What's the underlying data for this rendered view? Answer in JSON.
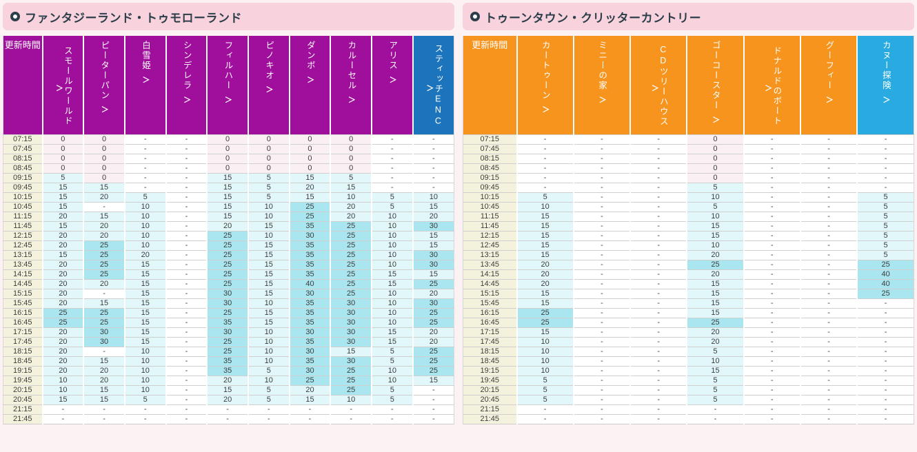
{
  "chevron": "＞",
  "colors": {
    "page_bg": "#FCF2F4",
    "title_bar_bg": "#F8D2DC",
    "title_text": "#2B3E4A",
    "left_header_bg": "#A00E9C",
    "left_highlight_bg": "#1C74BC",
    "right_header_bg": "#F7941D",
    "right_highlight_bg": "#29ABE2",
    "time_col_bg": "#F4F2DC",
    "cell_zero_bg": "#FAEFF2",
    "cell_low_bg": "#E2F7FA",
    "cell_high_bg": "#A9E6EF",
    "cell_none_bg": "#FFFFFF"
  },
  "panels": [
    {
      "title": "ファンタジーランド・トゥモローランド",
      "time_header": "更新時間",
      "header_bg": "#A00E9C",
      "highlight_bg": "#1C74BC",
      "columns": [
        {
          "label": "スモールワールド",
          "highlight": false
        },
        {
          "label": "ピーターパン",
          "highlight": false
        },
        {
          "label": "白雪姫",
          "highlight": false
        },
        {
          "label": "シンデレラ",
          "highlight": false
        },
        {
          "label": "フィルハー",
          "highlight": false
        },
        {
          "label": "ピノキオ",
          "highlight": false
        },
        {
          "label": "ダンボ",
          "highlight": false
        },
        {
          "label": "カルーセル",
          "highlight": false
        },
        {
          "label": "アリス",
          "highlight": false
        },
        {
          "label": "スティッチENC",
          "highlight": true
        }
      ],
      "rows": [
        {
          "time": "07:15",
          "values": [
            "0",
            "0",
            "-",
            "-",
            "0",
            "0",
            "0",
            "0",
            "-",
            "-"
          ]
        },
        {
          "time": "07:45",
          "values": [
            "0",
            "0",
            "-",
            "-",
            "0",
            "0",
            "0",
            "0",
            "-",
            "-"
          ]
        },
        {
          "time": "08:15",
          "values": [
            "0",
            "0",
            "-",
            "-",
            "0",
            "0",
            "0",
            "0",
            "-",
            "-"
          ]
        },
        {
          "time": "08:45",
          "values": [
            "0",
            "0",
            "-",
            "-",
            "0",
            "0",
            "0",
            "0",
            "-",
            "-"
          ]
        },
        {
          "time": "09:15",
          "values": [
            "5",
            "0",
            "-",
            "-",
            "15",
            "5",
            "15",
            "5",
            "-",
            "-"
          ]
        },
        {
          "time": "09:45",
          "values": [
            "15",
            "15",
            "-",
            "-",
            "15",
            "5",
            "20",
            "15",
            "-",
            "-"
          ]
        },
        {
          "time": "10:15",
          "values": [
            "15",
            "20",
            "5",
            "-",
            "15",
            "5",
            "15",
            "10",
            "5",
            "10"
          ]
        },
        {
          "time": "10:45",
          "values": [
            "15",
            "-",
            "10",
            "-",
            "15",
            "10",
            "25",
            "20",
            "5",
            "15"
          ]
        },
        {
          "time": "11:15",
          "values": [
            "20",
            "15",
            "10",
            "-",
            "15",
            "10",
            "25",
            "20",
            "10",
            "20"
          ]
        },
        {
          "time": "11:45",
          "values": [
            "15",
            "20",
            "10",
            "-",
            "20",
            "15",
            "35",
            "25",
            "10",
            "30"
          ]
        },
        {
          "time": "12:15",
          "values": [
            "20",
            "20",
            "10",
            "-",
            "25",
            "10",
            "30",
            "25",
            "10",
            "15"
          ]
        },
        {
          "time": "12:45",
          "values": [
            "20",
            "25",
            "10",
            "-",
            "25",
            "15",
            "35",
            "25",
            "10",
            "15"
          ]
        },
        {
          "time": "13:15",
          "values": [
            "15",
            "25",
            "20",
            "-",
            "25",
            "15",
            "35",
            "25",
            "10",
            "30"
          ]
        },
        {
          "time": "13:45",
          "values": [
            "20",
            "25",
            "15",
            "-",
            "25",
            "15",
            "35",
            "25",
            "10",
            "30"
          ]
        },
        {
          "time": "14:15",
          "values": [
            "20",
            "25",
            "15",
            "-",
            "25",
            "15",
            "35",
            "25",
            "15",
            "15"
          ]
        },
        {
          "time": "14:45",
          "values": [
            "20",
            "20",
            "15",
            "-",
            "25",
            "15",
            "40",
            "25",
            "15",
            "25"
          ]
        },
        {
          "time": "15:15",
          "values": [
            "20",
            "-",
            "15",
            "-",
            "30",
            "15",
            "30",
            "25",
            "10",
            "20"
          ]
        },
        {
          "time": "15:45",
          "values": [
            "20",
            "15",
            "15",
            "-",
            "30",
            "10",
            "35",
            "30",
            "10",
            "30"
          ]
        },
        {
          "time": "16:15",
          "values": [
            "25",
            "25",
            "15",
            "-",
            "25",
            "15",
            "35",
            "30",
            "10",
            "25"
          ]
        },
        {
          "time": "16:45",
          "values": [
            "25",
            "25",
            "15",
            "-",
            "35",
            "15",
            "35",
            "30",
            "10",
            "25"
          ]
        },
        {
          "time": "17:15",
          "values": [
            "20",
            "30",
            "15",
            "-",
            "30",
            "10",
            "30",
            "30",
            "15",
            "20"
          ]
        },
        {
          "time": "17:45",
          "values": [
            "20",
            "30",
            "15",
            "-",
            "25",
            "10",
            "35",
            "30",
            "15",
            "20"
          ]
        },
        {
          "time": "18:15",
          "values": [
            "20",
            "-",
            "10",
            "-",
            "25",
            "10",
            "30",
            "15",
            "5",
            "25"
          ]
        },
        {
          "time": "18:45",
          "values": [
            "20",
            "15",
            "10",
            "-",
            "35",
            "10",
            "35",
            "30",
            "5",
            "25"
          ]
        },
        {
          "time": "19:15",
          "values": [
            "20",
            "20",
            "10",
            "-",
            "35",
            "5",
            "30",
            "25",
            "10",
            "25"
          ]
        },
        {
          "time": "19:45",
          "values": [
            "10",
            "20",
            "10",
            "-",
            "20",
            "10",
            "25",
            "25",
            "10",
            "15"
          ]
        },
        {
          "time": "20:15",
          "values": [
            "10",
            "15",
            "10",
            "-",
            "15",
            "5",
            "20",
            "25",
            "5",
            "-"
          ]
        },
        {
          "time": "20:45",
          "values": [
            "15",
            "15",
            "5",
            "-",
            "20",
            "5",
            "15",
            "10",
            "5",
            "-"
          ]
        },
        {
          "time": "21:15",
          "values": [
            "-",
            "-",
            "-",
            "-",
            "-",
            "-",
            "-",
            "-",
            "-",
            "-"
          ]
        },
        {
          "time": "21:45",
          "values": [
            "-",
            "-",
            "-",
            "-",
            "-",
            "-",
            "-",
            "-",
            "-",
            "-"
          ]
        }
      ]
    },
    {
      "title": "トゥーンタウン・クリッターカントリー",
      "time_header": "更新時間",
      "header_bg": "#F7941D",
      "highlight_bg": "#29ABE2",
      "columns": [
        {
          "label": "カートゥーン",
          "highlight": false
        },
        {
          "label": "ミニーの家",
          "highlight": false
        },
        {
          "label": "CDツリーハウス",
          "highlight": false
        },
        {
          "label": "ゴーコースター",
          "highlight": false
        },
        {
          "label": "ドナルドのボート",
          "highlight": false
        },
        {
          "label": "グーフィー",
          "highlight": false
        },
        {
          "label": "カヌー探険",
          "highlight": true
        }
      ],
      "rows": [
        {
          "time": "07:15",
          "values": [
            "-",
            "-",
            "-",
            "0",
            "-",
            "-",
            "-"
          ]
        },
        {
          "time": "07:45",
          "values": [
            "-",
            "-",
            "-",
            "0",
            "-",
            "-",
            "-"
          ]
        },
        {
          "time": "08:15",
          "values": [
            "-",
            "-",
            "-",
            "0",
            "-",
            "-",
            "-"
          ]
        },
        {
          "time": "08:45",
          "values": [
            "-",
            "-",
            "-",
            "0",
            "-",
            "-",
            "-"
          ]
        },
        {
          "time": "09:15",
          "values": [
            "-",
            "-",
            "-",
            "0",
            "-",
            "-",
            "-"
          ]
        },
        {
          "time": "09:45",
          "values": [
            "-",
            "-",
            "-",
            "5",
            "-",
            "-",
            "-"
          ]
        },
        {
          "time": "10:15",
          "values": [
            "5",
            "-",
            "-",
            "10",
            "-",
            "-",
            "5"
          ]
        },
        {
          "time": "10:45",
          "values": [
            "10",
            "-",
            "-",
            "5",
            "-",
            "-",
            "5"
          ]
        },
        {
          "time": "11:15",
          "values": [
            "15",
            "-",
            "-",
            "10",
            "-",
            "-",
            "5"
          ]
        },
        {
          "time": "11:45",
          "values": [
            "15",
            "-",
            "-",
            "15",
            "-",
            "-",
            "5"
          ]
        },
        {
          "time": "12:15",
          "values": [
            "15",
            "-",
            "-",
            "15",
            "-",
            "-",
            "5"
          ]
        },
        {
          "time": "12:45",
          "values": [
            "15",
            "-",
            "-",
            "10",
            "-",
            "-",
            "5"
          ]
        },
        {
          "time": "13:15",
          "values": [
            "15",
            "-",
            "-",
            "20",
            "-",
            "-",
            "5"
          ]
        },
        {
          "time": "13:45",
          "values": [
            "20",
            "-",
            "-",
            "25",
            "-",
            "-",
            "25"
          ]
        },
        {
          "time": "14:15",
          "values": [
            "20",
            "-",
            "-",
            "20",
            "-",
            "-",
            "40"
          ]
        },
        {
          "time": "14:45",
          "values": [
            "20",
            "-",
            "-",
            "15",
            "-",
            "-",
            "40"
          ]
        },
        {
          "time": "15:15",
          "values": [
            "15",
            "-",
            "-",
            "15",
            "-",
            "-",
            "25"
          ]
        },
        {
          "time": "15:45",
          "values": [
            "15",
            "-",
            "-",
            "15",
            "-",
            "-",
            "-"
          ]
        },
        {
          "time": "16:15",
          "values": [
            "25",
            "-",
            "-",
            "15",
            "-",
            "-",
            "-"
          ]
        },
        {
          "time": "16:45",
          "values": [
            "25",
            "-",
            "-",
            "25",
            "-",
            "-",
            "-"
          ]
        },
        {
          "time": "17:15",
          "values": [
            "15",
            "-",
            "-",
            "20",
            "-",
            "-",
            "-"
          ]
        },
        {
          "time": "17:45",
          "values": [
            "10",
            "-",
            "-",
            "20",
            "-",
            "-",
            "-"
          ]
        },
        {
          "time": "18:15",
          "values": [
            "10",
            "-",
            "-",
            "5",
            "-",
            "-",
            "-"
          ]
        },
        {
          "time": "18:45",
          "values": [
            "10",
            "-",
            "-",
            "10",
            "-",
            "-",
            "-"
          ]
        },
        {
          "time": "19:15",
          "values": [
            "10",
            "-",
            "-",
            "15",
            "-",
            "-",
            "-"
          ]
        },
        {
          "time": "19:45",
          "values": [
            "5",
            "-",
            "-",
            "5",
            "-",
            "-",
            "-"
          ]
        },
        {
          "time": "20:15",
          "values": [
            "5",
            "-",
            "-",
            "5",
            "-",
            "-",
            "-"
          ]
        },
        {
          "time": "20:45",
          "values": [
            "5",
            "-",
            "-",
            "5",
            "-",
            "-",
            "-"
          ]
        },
        {
          "time": "21:15",
          "values": [
            "-",
            "-",
            "-",
            "-",
            "-",
            "-",
            "-"
          ]
        },
        {
          "time": "21:45",
          "values": [
            "-",
            "-",
            "-",
            "-",
            "-",
            "-",
            "-"
          ]
        }
      ]
    }
  ]
}
